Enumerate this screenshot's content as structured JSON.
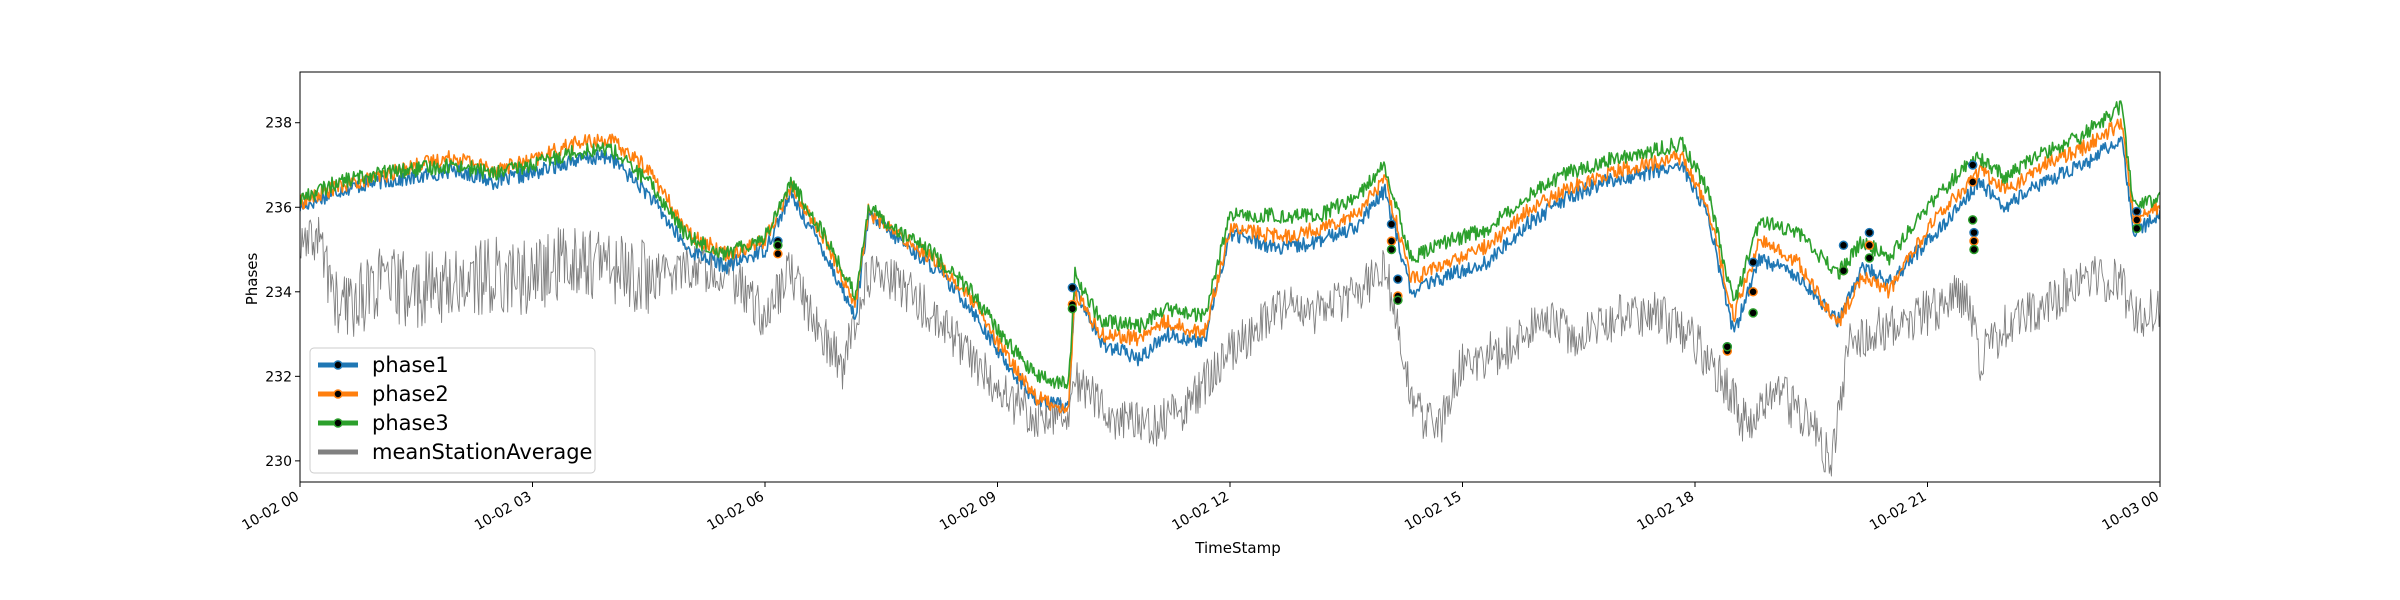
{
  "chart_data": {
    "type": "line",
    "title": "",
    "xlabel": "TimeStamp",
    "ylabel": "Phases",
    "xlim": [
      "10-02 00",
      "10-03 00"
    ],
    "ylim": [
      229.5,
      239.2
    ],
    "x_ticks": [
      "10-02 00",
      "10-02 03",
      "10-02 06",
      "10-02 09",
      "10-02 12",
      "10-02 15",
      "10-02 18",
      "10-02 21",
      "10-03 00"
    ],
    "y_ticks": [
      230,
      232,
      234,
      236,
      238
    ],
    "grid": false,
    "legend_position": "lower-left",
    "series": [
      {
        "name": "phase1",
        "color": "#1f77b4",
        "points": [
          [
            "10-02 00:00",
            236.0
          ],
          [
            "10-02 00:30",
            236.4
          ],
          [
            "10-02 01:00",
            236.6
          ],
          [
            "10-02 01:30",
            236.7
          ],
          [
            "10-02 02:00",
            236.9
          ],
          [
            "10-02 02:30",
            236.6
          ],
          [
            "10-02 03:00",
            236.8
          ],
          [
            "10-02 03:30",
            237.1
          ],
          [
            "10-02 04:00",
            237.2
          ],
          [
            "10-02 04:30",
            236.3
          ],
          [
            "10-02 05:00",
            235.0
          ],
          [
            "10-02 05:30",
            234.6
          ],
          [
            "10-02 06:00",
            235.0
          ],
          [
            "10-02 06:20",
            236.3
          ],
          [
            "10-02 06:45",
            235.0
          ],
          [
            "10-02 07:10",
            233.4
          ],
          [
            "10-02 07:20",
            235.8
          ],
          [
            "10-02 07:45",
            235.2
          ],
          [
            "10-02 08:10",
            234.6
          ],
          [
            "10-02 08:40",
            233.6
          ],
          [
            "10-02 09:00",
            232.6
          ],
          [
            "10-02 09:30",
            231.4
          ],
          [
            "10-02 09:55",
            231.3
          ],
          [
            "10-02 10:00",
            234.1
          ],
          [
            "10-02 10:20",
            232.8
          ],
          [
            "10-02 10:50",
            232.4
          ],
          [
            "10-02 11:10",
            233.0
          ],
          [
            "10-02 11:40",
            232.8
          ],
          [
            "10-02 12:00",
            235.4
          ],
          [
            "10-02 12:40",
            235.0
          ],
          [
            "10-02 13:10",
            235.2
          ],
          [
            "10-02 13:40",
            235.6
          ],
          [
            "10-02 14:00",
            236.4
          ],
          [
            "10-02 14:20",
            234.0
          ],
          [
            "10-02 14:50",
            234.4
          ],
          [
            "10-02 15:20",
            234.7
          ],
          [
            "10-02 15:50",
            235.6
          ],
          [
            "10-02 16:20",
            236.2
          ],
          [
            "10-02 16:50",
            236.6
          ],
          [
            "10-02 17:20",
            236.8
          ],
          [
            "10-02 17:50",
            237.0
          ],
          [
            "10-02 18:10",
            235.8
          ],
          [
            "10-02 18:30",
            233.0
          ],
          [
            "10-02 18:50",
            234.8
          ],
          [
            "10-02 19:20",
            234.4
          ],
          [
            "10-02 19:50",
            233.3
          ],
          [
            "10-02 20:10",
            234.6
          ],
          [
            "10-02 20:30",
            234.2
          ],
          [
            "10-02 21:00",
            235.2
          ],
          [
            "10-02 21:30",
            236.2
          ],
          [
            "10-02 21:40",
            236.6
          ],
          [
            "10-02 22:00",
            236.0
          ],
          [
            "10-02 22:30",
            236.6
          ],
          [
            "10-02 23:00",
            237.0
          ],
          [
            "10-02 23:30",
            237.6
          ],
          [
            "10-02 23:40",
            235.4
          ],
          [
            "10-03 00:00",
            235.8
          ]
        ]
      },
      {
        "name": "phase2",
        "color": "#ff7f0e",
        "points": [
          [
            "10-02 00:00",
            236.1
          ],
          [
            "10-02 00:30",
            236.5
          ],
          [
            "10-02 01:00",
            236.7
          ],
          [
            "10-02 01:30",
            237.0
          ],
          [
            "10-02 02:00",
            237.2
          ],
          [
            "10-02 02:30",
            236.9
          ],
          [
            "10-02 03:00",
            237.1
          ],
          [
            "10-02 03:30",
            237.5
          ],
          [
            "10-02 04:00",
            237.6
          ],
          [
            "10-02 04:30",
            236.9
          ],
          [
            "10-02 05:00",
            235.4
          ],
          [
            "10-02 05:30",
            234.9
          ],
          [
            "10-02 06:00",
            235.2
          ],
          [
            "10-02 06:20",
            236.5
          ],
          [
            "10-02 06:45",
            235.3
          ],
          [
            "10-02 07:10",
            233.7
          ],
          [
            "10-02 07:20",
            235.9
          ],
          [
            "10-02 07:45",
            235.3
          ],
          [
            "10-02 08:10",
            234.8
          ],
          [
            "10-02 08:40",
            233.8
          ],
          [
            "10-02 09:00",
            232.8
          ],
          [
            "10-02 09:30",
            231.5
          ],
          [
            "10-02 09:55",
            231.2
          ],
          [
            "10-02 10:00",
            234.0
          ],
          [
            "10-02 10:20",
            233.0
          ],
          [
            "10-02 10:50",
            232.9
          ],
          [
            "10-02 11:10",
            233.3
          ],
          [
            "10-02 11:40",
            233.0
          ],
          [
            "10-02 12:00",
            235.5
          ],
          [
            "10-02 12:40",
            235.3
          ],
          [
            "10-02 13:10",
            235.5
          ],
          [
            "10-02 13:40",
            235.9
          ],
          [
            "10-02 14:00",
            236.7
          ],
          [
            "10-02 14:20",
            234.3
          ],
          [
            "10-02 14:50",
            234.7
          ],
          [
            "10-02 15:20",
            235.1
          ],
          [
            "10-02 15:50",
            235.9
          ],
          [
            "10-02 16:20",
            236.4
          ],
          [
            "10-02 16:50",
            236.8
          ],
          [
            "10-02 17:20",
            237.0
          ],
          [
            "10-02 17:50",
            237.2
          ],
          [
            "10-02 18:10",
            236.0
          ],
          [
            "10-02 18:30",
            233.4
          ],
          [
            "10-02 18:50",
            235.2
          ],
          [
            "10-02 19:20",
            234.7
          ],
          [
            "10-02 19:50",
            233.2
          ],
          [
            "10-02 20:10",
            234.4
          ],
          [
            "10-02 20:30",
            234.0
          ],
          [
            "10-02 21:00",
            235.5
          ],
          [
            "10-02 21:30",
            236.5
          ],
          [
            "10-02 21:40",
            236.9
          ],
          [
            "10-02 22:00",
            236.4
          ],
          [
            "10-02 22:30",
            237.0
          ],
          [
            "10-02 23:00",
            237.4
          ],
          [
            "10-02 23:30",
            238.0
          ],
          [
            "10-02 23:40",
            235.7
          ],
          [
            "10-03 00:00",
            236.0
          ]
        ]
      },
      {
        "name": "phase3",
        "color": "#2ca02c",
        "points": [
          [
            "10-02 00:00",
            236.2
          ],
          [
            "10-02 00:30",
            236.6
          ],
          [
            "10-02 01:00",
            236.8
          ],
          [
            "10-02 01:30",
            236.9
          ],
          [
            "10-02 02:00",
            237.0
          ],
          [
            "10-02 02:30",
            236.8
          ],
          [
            "10-02 03:00",
            237.0
          ],
          [
            "10-02 03:30",
            237.3
          ],
          [
            "10-02 04:00",
            237.4
          ],
          [
            "10-02 04:30",
            236.6
          ],
          [
            "10-02 05:00",
            235.3
          ],
          [
            "10-02 05:30",
            234.9
          ],
          [
            "10-02 06:00",
            235.3
          ],
          [
            "10-02 06:20",
            236.6
          ],
          [
            "10-02 06:45",
            235.4
          ],
          [
            "10-02 07:10",
            233.9
          ],
          [
            "10-02 07:20",
            236.0
          ],
          [
            "10-02 07:45",
            235.4
          ],
          [
            "10-02 08:10",
            234.9
          ],
          [
            "10-02 08:40",
            234.0
          ],
          [
            "10-02 09:00",
            233.1
          ],
          [
            "10-02 09:30",
            232.0
          ],
          [
            "10-02 09:55",
            231.8
          ],
          [
            "10-02 10:00",
            234.4
          ],
          [
            "10-02 10:20",
            233.3
          ],
          [
            "10-02 10:50",
            233.2
          ],
          [
            "10-02 11:10",
            233.6
          ],
          [
            "10-02 11:40",
            233.4
          ],
          [
            "10-02 12:00",
            235.8
          ],
          [
            "10-02 12:40",
            235.8
          ],
          [
            "10-02 13:10",
            235.8
          ],
          [
            "10-02 13:40",
            236.3
          ],
          [
            "10-02 14:00",
            237.0
          ],
          [
            "10-02 14:20",
            234.8
          ],
          [
            "10-02 14:50",
            235.2
          ],
          [
            "10-02 15:20",
            235.5
          ],
          [
            "10-02 15:50",
            236.3
          ],
          [
            "10-02 16:20",
            236.8
          ],
          [
            "10-02 16:50",
            237.1
          ],
          [
            "10-02 17:20",
            237.3
          ],
          [
            "10-02 17:50",
            237.5
          ],
          [
            "10-02 18:10",
            236.4
          ],
          [
            "10-02 18:30",
            233.7
          ],
          [
            "10-02 18:50",
            235.7
          ],
          [
            "10-02 19:20",
            235.4
          ],
          [
            "10-02 19:50",
            234.4
          ],
          [
            "10-02 20:10",
            235.2
          ],
          [
            "10-02 20:30",
            234.8
          ],
          [
            "10-02 21:00",
            236.0
          ],
          [
            "10-02 21:30",
            237.0
          ],
          [
            "10-02 21:40",
            237.2
          ],
          [
            "10-02 22:00",
            236.7
          ],
          [
            "10-02 22:30",
            237.3
          ],
          [
            "10-02 23:00",
            237.7
          ],
          [
            "10-02 23:30",
            238.4
          ],
          [
            "10-02 23:40",
            236.0
          ],
          [
            "10-03 00:00",
            236.2
          ]
        ]
      },
      {
        "name": "meanStationAverage",
        "color": "#808080",
        "points": [
          [
            "10-02 00:00",
            235.0
          ],
          [
            "10-02 00:15",
            235.3
          ],
          [
            "10-02 00:30",
            233.5
          ],
          [
            "10-02 01:00",
            234.2
          ],
          [
            "10-02 01:30",
            234.0
          ],
          [
            "10-02 02:00",
            234.2
          ],
          [
            "10-02 02:30",
            234.4
          ],
          [
            "10-02 03:00",
            234.3
          ],
          [
            "10-02 03:30",
            234.8
          ],
          [
            "10-02 04:00",
            234.6
          ],
          [
            "10-02 04:30",
            234.3
          ],
          [
            "10-02 05:00",
            234.6
          ],
          [
            "10-02 05:30",
            234.5
          ],
          [
            "10-02 06:00",
            233.4
          ],
          [
            "10-02 06:20",
            234.5
          ],
          [
            "10-02 06:40",
            233.2
          ],
          [
            "10-02 07:00",
            232.2
          ],
          [
            "10-02 07:20",
            234.4
          ],
          [
            "10-02 07:45",
            234.2
          ],
          [
            "10-02 08:10",
            233.4
          ],
          [
            "10-02 08:40",
            232.5
          ],
          [
            "10-02 09:00",
            231.6
          ],
          [
            "10-02 09:30",
            231.1
          ],
          [
            "10-02 09:55",
            231.2
          ],
          [
            "10-02 10:00",
            232.0
          ],
          [
            "10-02 10:30",
            231.0
          ],
          [
            "10-02 11:00",
            230.8
          ],
          [
            "10-02 11:30",
            231.4
          ],
          [
            "10-02 12:00",
            232.6
          ],
          [
            "10-02 12:40",
            233.6
          ],
          [
            "10-02 13:10",
            233.5
          ],
          [
            "10-02 13:40",
            234.1
          ],
          [
            "10-02 14:00",
            234.6
          ],
          [
            "10-02 14:20",
            231.5
          ],
          [
            "10-02 14:40",
            230.6
          ],
          [
            "10-02 15:00",
            232.3
          ],
          [
            "10-02 15:30",
            232.6
          ],
          [
            "10-02 16:00",
            233.3
          ],
          [
            "10-02 16:30",
            233.0
          ],
          [
            "10-02 17:00",
            233.4
          ],
          [
            "10-02 17:30",
            233.5
          ],
          [
            "10-02 18:00",
            232.8
          ],
          [
            "10-02 18:20",
            232.0
          ],
          [
            "10-02 18:40",
            230.8
          ],
          [
            "10-02 19:00",
            231.8
          ],
          [
            "10-02 19:30",
            230.8
          ],
          [
            "10-02 19:45",
            230.0
          ],
          [
            "10-02 20:00",
            232.8
          ],
          [
            "10-02 20:30",
            233.2
          ],
          [
            "10-02 21:00",
            233.5
          ],
          [
            "10-02 21:30",
            234.0
          ],
          [
            "10-02 21:40",
            232.4
          ],
          [
            "10-02 22:00",
            233.2
          ],
          [
            "10-02 22:30",
            233.6
          ],
          [
            "10-02 23:00",
            234.4
          ],
          [
            "10-02 23:30",
            234.2
          ],
          [
            "10-02 23:40",
            233.4
          ],
          [
            "10-03 00:00",
            233.6
          ]
        ]
      }
    ],
    "markers": [
      {
        "x": "10-02 06:10",
        "values": [
          235.2,
          234.9,
          235.1
        ]
      },
      {
        "x": "10-02 09:58",
        "values": [
          234.1,
          233.7,
          233.6
        ]
      },
      {
        "x": "10-02 14:05",
        "values": [
          235.6,
          235.2,
          235.0
        ]
      },
      {
        "x": "10-02 14:10",
        "values": [
          234.3,
          233.9,
          233.8
        ]
      },
      {
        "x": "10-02 18:25",
        "values": [
          232.7,
          232.6,
          232.7
        ]
      },
      {
        "x": "10-02 18:45",
        "values": [
          234.7,
          234.0,
          233.5
        ]
      },
      {
        "x": "10-02 19:55",
        "values": [
          235.1,
          234.5,
          234.5
        ]
      },
      {
        "x": "10-02 20:15",
        "values": [
          235.4,
          235.1,
          234.8
        ]
      },
      {
        "x": "10-02 21:35",
        "values": [
          237.0,
          236.6,
          235.7
        ]
      },
      {
        "x": "10-02 21:36",
        "values": [
          235.4,
          235.2,
          235.0
        ]
      },
      {
        "x": "10-02 23:42",
        "values": [
          235.9,
          235.7,
          235.5
        ]
      }
    ]
  }
}
